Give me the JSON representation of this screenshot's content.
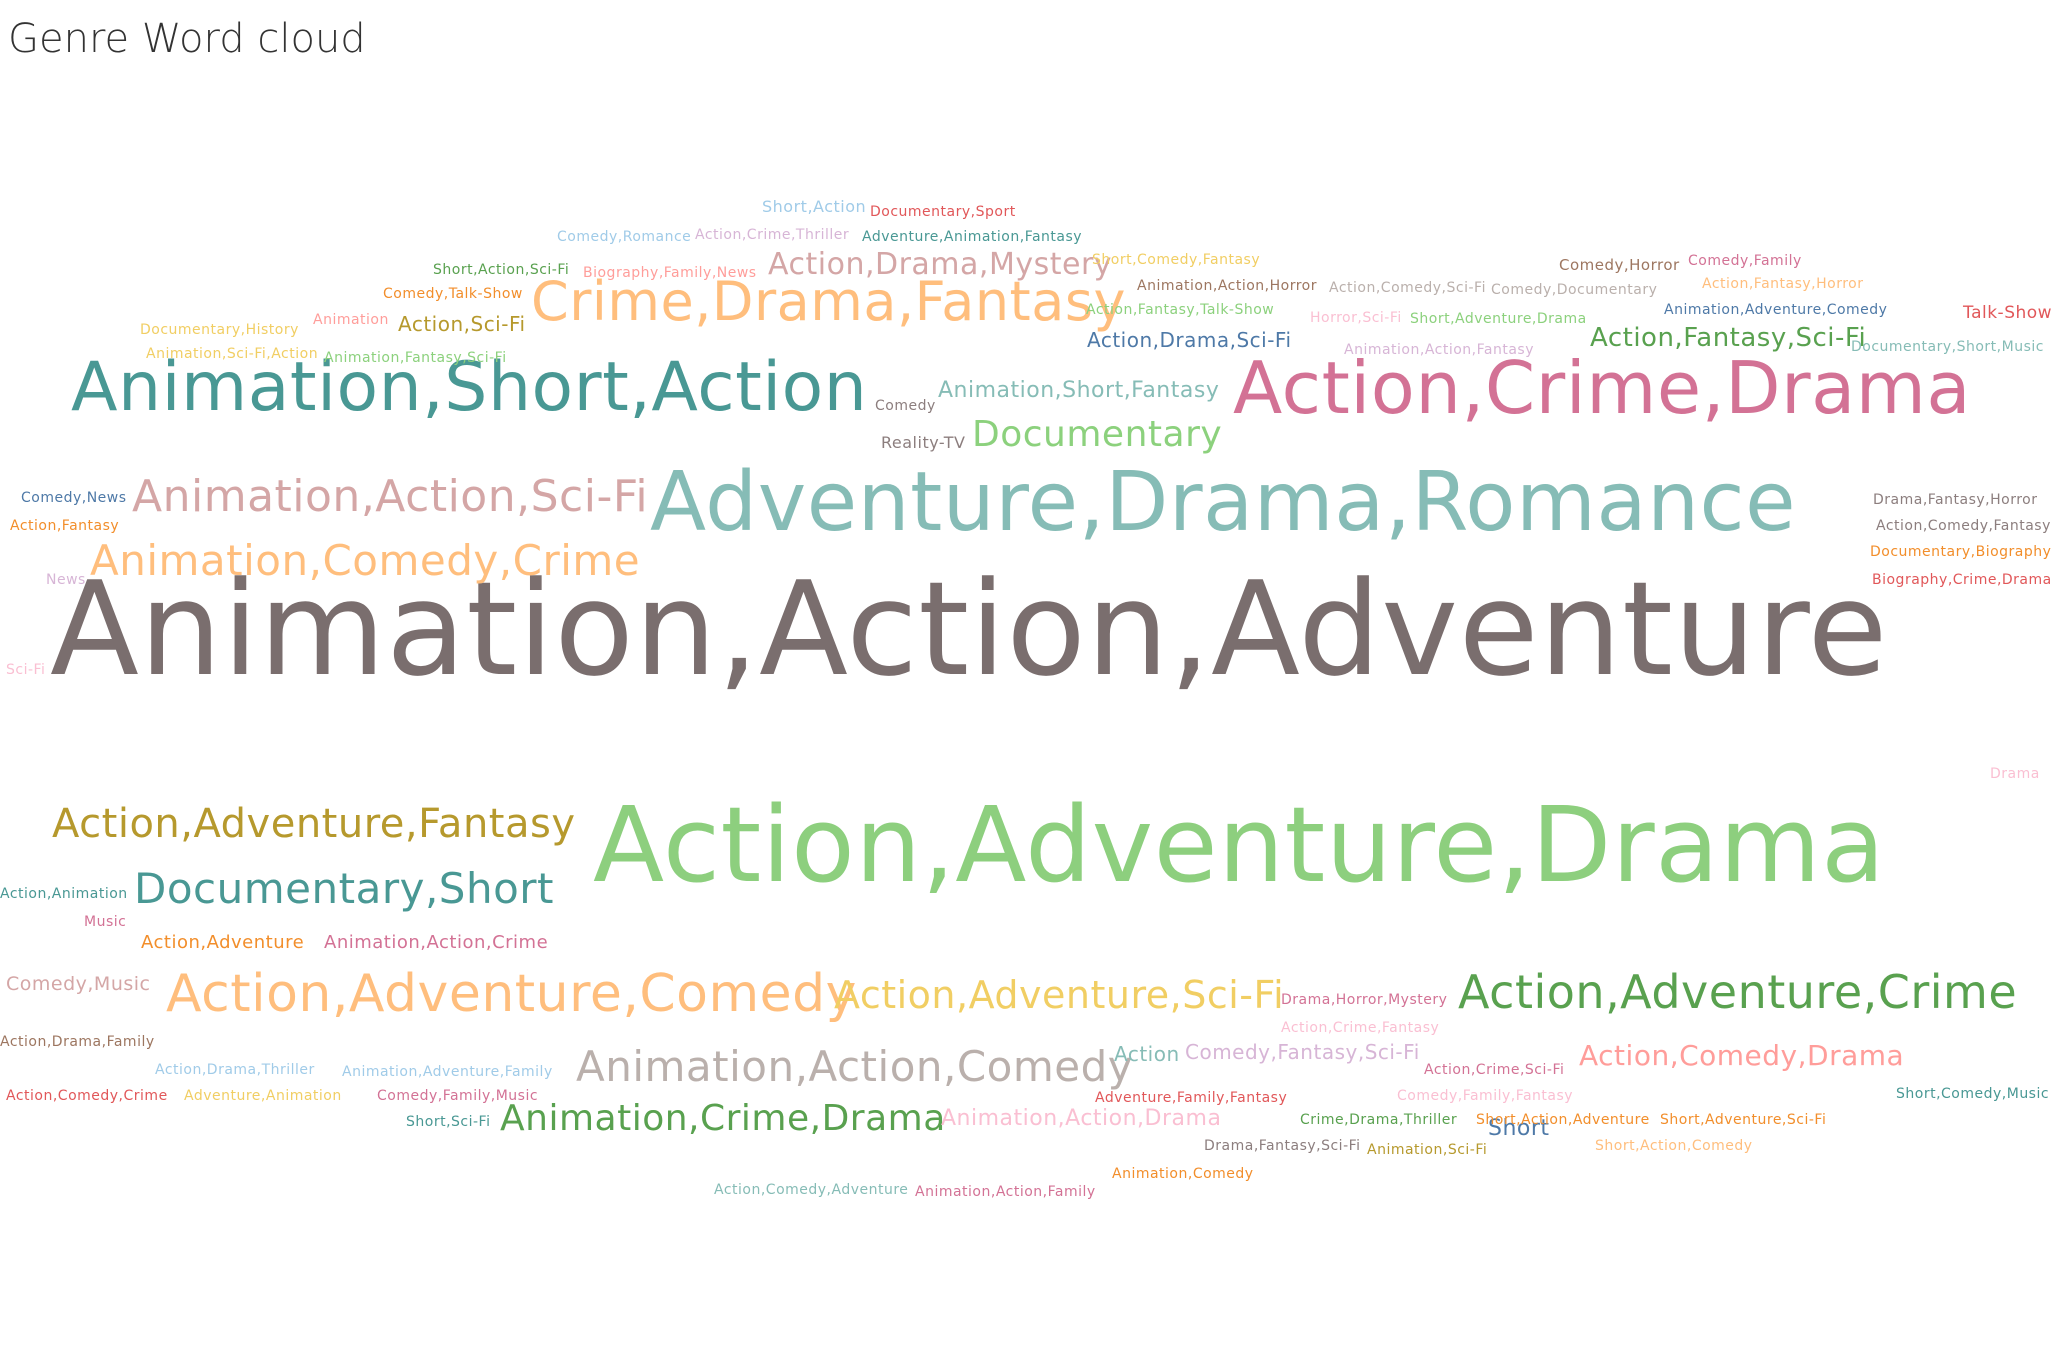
{
  "title": "Genre Word cloud",
  "chart_data": {
    "type": "wordcloud",
    "words": [
      {
        "text": "Animation,Action,Adventure",
        "color": "#7a6e6e",
        "weight": 100
      },
      {
        "text": "Action,Adventure,Drama",
        "color": "#8dcf7e",
        "weight": 72
      },
      {
        "text": "Adventure,Drama,Romance",
        "color": "#86bcb6",
        "weight": 50
      },
      {
        "text": "Action,Crime,Drama",
        "color": "#d37295",
        "weight": 44
      },
      {
        "text": "Animation,Short,Action",
        "color": "#499894",
        "weight": 42
      },
      {
        "text": "Crime,Drama,Fantasy",
        "color": "#ffbe7d",
        "weight": 32
      },
      {
        "text": "Action,Adventure,Comedy",
        "color": "#ffbe7d",
        "weight": 32
      },
      {
        "text": "Action,Adventure,Crime",
        "color": "#59a14f",
        "weight": 28
      },
      {
        "text": "Animation,Action,Sci-Fi",
        "color": "#d4a6a6",
        "weight": 27
      },
      {
        "text": "Animation,Action,Comedy",
        "color": "#bab0ac",
        "weight": 27
      },
      {
        "text": "Animation,Comedy,Crime",
        "color": "#ffbe7d",
        "weight": 26
      },
      {
        "text": "Action,Adventure,Fantasy",
        "color": "#b6992d",
        "weight": 25
      },
      {
        "text": "Documentary,Short",
        "color": "#499894",
        "weight": 25
      },
      {
        "text": "Action,Adventure,Sci-Fi",
        "color": "#f1ce63",
        "weight": 23
      },
      {
        "text": "Animation,Crime,Drama",
        "color": "#59a14f",
        "weight": 23
      },
      {
        "text": "Action,Comedy,Drama",
        "color": "#ff9d9a",
        "weight": 21
      },
      {
        "text": "Documentary",
        "color": "#8cd17d",
        "weight": 21
      },
      {
        "text": "Action,Drama,Mystery",
        "color": "#d4a6a6",
        "weight": 21
      },
      {
        "text": "Action,Fantasy,Sci-Fi",
        "color": "#59a14f",
        "weight": 19
      },
      {
        "text": "Animation,Action,Drama",
        "color": "#fabfd2",
        "weight": 16
      },
      {
        "text": "Action,Drama,Sci-Fi",
        "color": "#4e79a7",
        "weight": 16
      },
      {
        "text": "Action,Sci-Fi",
        "color": "#b6992d",
        "weight": 16
      },
      {
        "text": "Comedy,Fantasy,Sci-Fi",
        "color": "#d7b5d6",
        "weight": 16
      },
      {
        "text": "Short",
        "color": "#4e79a7",
        "weight": 16
      },
      {
        "text": "Action",
        "color": "#86bcb6",
        "weight": 16
      },
      {
        "text": "Animation,Short,Fantasy",
        "color": "#86bcb6",
        "weight": 16
      },
      {
        "text": "Comedy,Music",
        "color": "#d4a6a6",
        "weight": 15
      },
      {
        "text": "Talk-Show",
        "color": "#e15759",
        "weight": 13
      },
      {
        "text": "Short,Action",
        "color": "#a0cbe8",
        "weight": 13
      },
      {
        "text": "Animation,Action,Crime",
        "color": "#d37295",
        "weight": 13
      },
      {
        "text": "Action,Adventure",
        "color": "#f28e2b",
        "weight": 13
      },
      {
        "text": "Reality-TV",
        "color": "#8c7e7e",
        "weight": 12
      },
      {
        "text": "Comedy,Horror",
        "color": "#9d7660",
        "weight": 12
      },
      {
        "text": "Documentary,Sport",
        "color": "#e15759",
        "weight": 12
      },
      {
        "text": "Adventure,Animation,Fantasy",
        "color": "#499894",
        "weight": 12
      },
      {
        "text": "Comedy,Romance",
        "color": "#a0cbe8",
        "weight": 12
      },
      {
        "text": "Action,Crime,Thriller",
        "color": "#d7b5d6",
        "weight": 12
      },
      {
        "text": "Short,Action,Sci-Fi",
        "color": "#59a14f",
        "weight": 12
      },
      {
        "text": "Biography,Family,News",
        "color": "#ff9d9a",
        "weight": 12
      },
      {
        "text": "Short,Comedy,Fantasy",
        "color": "#f1ce63",
        "weight": 12
      },
      {
        "text": "Animation,Action,Horror",
        "color": "#9d7660",
        "weight": 12
      },
      {
        "text": "Action,Comedy,Sci-Fi",
        "color": "#bab0ac",
        "weight": 12
      },
      {
        "text": "Comedy,Documentary",
        "color": "#bab0ac",
        "weight": 12
      },
      {
        "text": "Comedy,Family",
        "color": "#d37295",
        "weight": 12
      },
      {
        "text": "Action,Fantasy,Horror",
        "color": "#ffbe7d",
        "weight": 12
      },
      {
        "text": "Comedy,Talk-Show",
        "color": "#f28e2b",
        "weight": 12
      },
      {
        "text": "Action,Fantasy,Talk-Show",
        "color": "#8cd17d",
        "weight": 12
      },
      {
        "text": "Horror,Sci-Fi",
        "color": "#fabfd2",
        "weight": 12
      },
      {
        "text": "Short,Adventure,Drama",
        "color": "#8cd17d",
        "weight": 12
      },
      {
        "text": "Animation,Adventure,Comedy",
        "color": "#4e79a7",
        "weight": 12
      },
      {
        "text": "Documentary,History",
        "color": "#f1ce63",
        "weight": 12
      },
      {
        "text": "Animation",
        "color": "#ff9d9a",
        "weight": 12
      },
      {
        "text": "Animation,Sci-Fi,Action",
        "color": "#f1ce63",
        "weight": 12
      },
      {
        "text": "Animation,Fantasy,Sci-Fi",
        "color": "#8cd17d",
        "weight": 12
      },
      {
        "text": "Animation,Action,Fantasy",
        "color": "#d7b5d6",
        "weight": 12
      },
      {
        "text": "Documentary,Short,Music",
        "color": "#86bcb6",
        "weight": 12
      },
      {
        "text": "Comedy",
        "color": "#8c7e7e",
        "weight": 12
      },
      {
        "text": "Comedy,News",
        "color": "#4e79a7",
        "weight": 12
      },
      {
        "text": "Action,Fantasy",
        "color": "#f28e2b",
        "weight": 12
      },
      {
        "text": "News",
        "color": "#d7b5d6",
        "weight": 12
      },
      {
        "text": "Drama,Fantasy,Horror",
        "color": "#8c7e7e",
        "weight": 12
      },
      {
        "text": "Action,Comedy,Fantasy",
        "color": "#8c7e7e",
        "weight": 12
      },
      {
        "text": "Documentary,Biography",
        "color": "#f28e2b",
        "weight": 12
      },
      {
        "text": "Biography,Crime,Drama",
        "color": "#e15759",
        "weight": 12
      },
      {
        "text": "Sci-Fi",
        "color": "#fabfd2",
        "weight": 12
      },
      {
        "text": "Drama",
        "color": "#fabfd2",
        "weight": 12
      },
      {
        "text": "Action,Animation",
        "color": "#499894",
        "weight": 12
      },
      {
        "text": "Music",
        "color": "#d37295",
        "weight": 12
      },
      {
        "text": "Action,Drama,Family",
        "color": "#9d7660",
        "weight": 12
      },
      {
        "text": "Action,Drama,Thriller",
        "color": "#a0cbe8",
        "weight": 12
      },
      {
        "text": "Animation,Adventure,Family",
        "color": "#a0cbe8",
        "weight": 12
      },
      {
        "text": "Action,Comedy,Crime",
        "color": "#e15759",
        "weight": 12
      },
      {
        "text": "Adventure,Animation",
        "color": "#f1ce63",
        "weight": 12
      },
      {
        "text": "Comedy,Family,Music",
        "color": "#d37295",
        "weight": 12
      },
      {
        "text": "Short,Sci-Fi",
        "color": "#499894",
        "weight": 12
      },
      {
        "text": "Drama,Horror,Mystery",
        "color": "#d37295",
        "weight": 12
      },
      {
        "text": "Action,Crime,Fantasy",
        "color": "#fabfd2",
        "weight": 12
      },
      {
        "text": "Action,Crime,Sci-Fi",
        "color": "#d37295",
        "weight": 12
      },
      {
        "text": "Adventure,Family,Fantasy",
        "color": "#e15759",
        "weight": 12
      },
      {
        "text": "Comedy,Family,Fantasy",
        "color": "#fabfd2",
        "weight": 12
      },
      {
        "text": "Short,Comedy,Music",
        "color": "#499894",
        "weight": 12
      },
      {
        "text": "Crime,Drama,Thriller",
        "color": "#59a14f",
        "weight": 12
      },
      {
        "text": "Short,Action,Adventure",
        "color": "#f28e2b",
        "weight": 12
      },
      {
        "text": "Short,Adventure,Sci-Fi",
        "color": "#f28e2b",
        "weight": 12
      },
      {
        "text": "Drama,Fantasy,Sci-Fi",
        "color": "#8c7e7e",
        "weight": 12
      },
      {
        "text": "Animation,Sci-Fi",
        "color": "#b6992d",
        "weight": 12
      },
      {
        "text": "Short,Action,Comedy",
        "color": "#ffbe7d",
        "weight": 12
      },
      {
        "text": "Action,Comedy,Adventure",
        "color": "#86bcb6",
        "weight": 12
      },
      {
        "text": "Animation,Action,Family",
        "color": "#d37295",
        "weight": 12
      },
      {
        "text": "Animation,Comedy",
        "color": "#f28e2b",
        "weight": 12
      }
    ]
  }
}
